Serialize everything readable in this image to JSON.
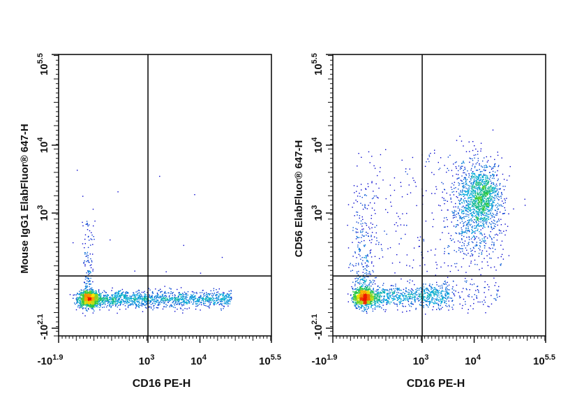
{
  "chart_data": [
    {
      "type": "scatter",
      "title": "",
      "xlabel": "CD16 PE-H",
      "ylabel": "Mouse IgG1 ElabFluor® 647-H",
      "x_scale": "logicle (channel 0-1024)",
      "y_scale": "logicle (channel 0-1024)",
      "xticks": [
        {
          "label_base": "-10",
          "label_exp": "1.9",
          "channel": 0
        },
        {
          "label_base": "10",
          "label_exp": "3",
          "channel": 430
        },
        {
          "label_base": "10",
          "label_exp": "4",
          "channel": 680
        },
        {
          "label_base": "10",
          "label_exp": "5.5",
          "channel": 1024
        }
      ],
      "yticks": [
        {
          "label_base": "-10",
          "label_exp": "2.1",
          "channel": 28
        },
        {
          "label_base": "10",
          "label_exp": "3",
          "channel": 447
        },
        {
          "label_base": "10",
          "label_exp": "4",
          "channel": 694
        },
        {
          "label_base": "10",
          "label_exp": "5.5",
          "channel": 1024
        }
      ],
      "quadrant_gate": {
        "x_channel": 430,
        "y_channel": 218
      },
      "populations": [
        {
          "name": "core",
          "kind": "gauss",
          "x": 140,
          "xsd": 25,
          "y": 135,
          "ysd": 15,
          "n": 900
        },
        {
          "name": "cd16-tail",
          "kind": "uniformx",
          "x0": 150,
          "x1": 830,
          "y": 135,
          "ysd": 15,
          "n": 1400
        },
        {
          "name": "streak",
          "kind": "streak",
          "x": 140,
          "xsd": 14,
          "y0": 150,
          "y1": 420,
          "n": 160
        },
        {
          "name": "sparse",
          "kind": "box",
          "x0": 60,
          "x1": 800,
          "y0": 230,
          "y1": 620,
          "n": 14
        }
      ]
    },
    {
      "type": "scatter",
      "title": "",
      "xlabel": "CD16 PE-H",
      "ylabel": "CD56 ElabFluor® 647-H",
      "x_scale": "logicle (channel 0-1024)",
      "y_scale": "logicle (channel 0-1024)",
      "xticks": [
        {
          "label_base": "-10",
          "label_exp": "1.9",
          "channel": 0
        },
        {
          "label_base": "10",
          "label_exp": "3",
          "channel": 430
        },
        {
          "label_base": "10",
          "label_exp": "4",
          "channel": 680
        },
        {
          "label_base": "10",
          "label_exp": "5.5",
          "channel": 1024
        }
      ],
      "yticks": [
        {
          "label_base": "-10",
          "label_exp": "2.1",
          "channel": 28
        },
        {
          "label_base": "10",
          "label_exp": "3",
          "channel": 447
        },
        {
          "label_base": "10",
          "label_exp": "4",
          "channel": 694
        },
        {
          "label_base": "10",
          "label_exp": "5.5",
          "channel": 1024
        }
      ],
      "quadrant_gate": {
        "x_channel": 430,
        "y_channel": 218
      },
      "populations": [
        {
          "name": "core",
          "kind": "gauss",
          "x": 144,
          "xsd": 25,
          "y": 140,
          "ysd": 16,
          "n": 850
        },
        {
          "name": "cd16-tail",
          "kind": "uniformx",
          "x0": 150,
          "x1": 560,
          "y": 145,
          "ysd": 20,
          "n": 800
        },
        {
          "name": "cd16-high-low-cd56",
          "kind": "uniformx",
          "x0": 430,
          "x1": 800,
          "y": 150,
          "ysd": 30,
          "n": 160
        },
        {
          "name": "cd56-streak",
          "kind": "streak",
          "x": 150,
          "xsd": 30,
          "y0": 160,
          "y1": 560,
          "n": 320
        },
        {
          "name": "nk-cluster",
          "kind": "gauss",
          "x": 690,
          "xsd": 65,
          "y": 470,
          "ysd": 85,
          "n": 1100
        },
        {
          "name": "nk-core",
          "kind": "gauss",
          "x": 720,
          "xsd": 35,
          "y": 520,
          "ysd": 40,
          "n": 500
        },
        {
          "name": "sparse",
          "kind": "box",
          "x0": 100,
          "x1": 820,
          "y0": 230,
          "y1": 680,
          "n": 260
        }
      ]
    }
  ],
  "colors": {
    "axis": "#111111",
    "low": "#0000cc",
    "mid": "#00c8c8",
    "green": "#33cc33",
    "high": "#ffee00",
    "peak": "#ee1100"
  }
}
